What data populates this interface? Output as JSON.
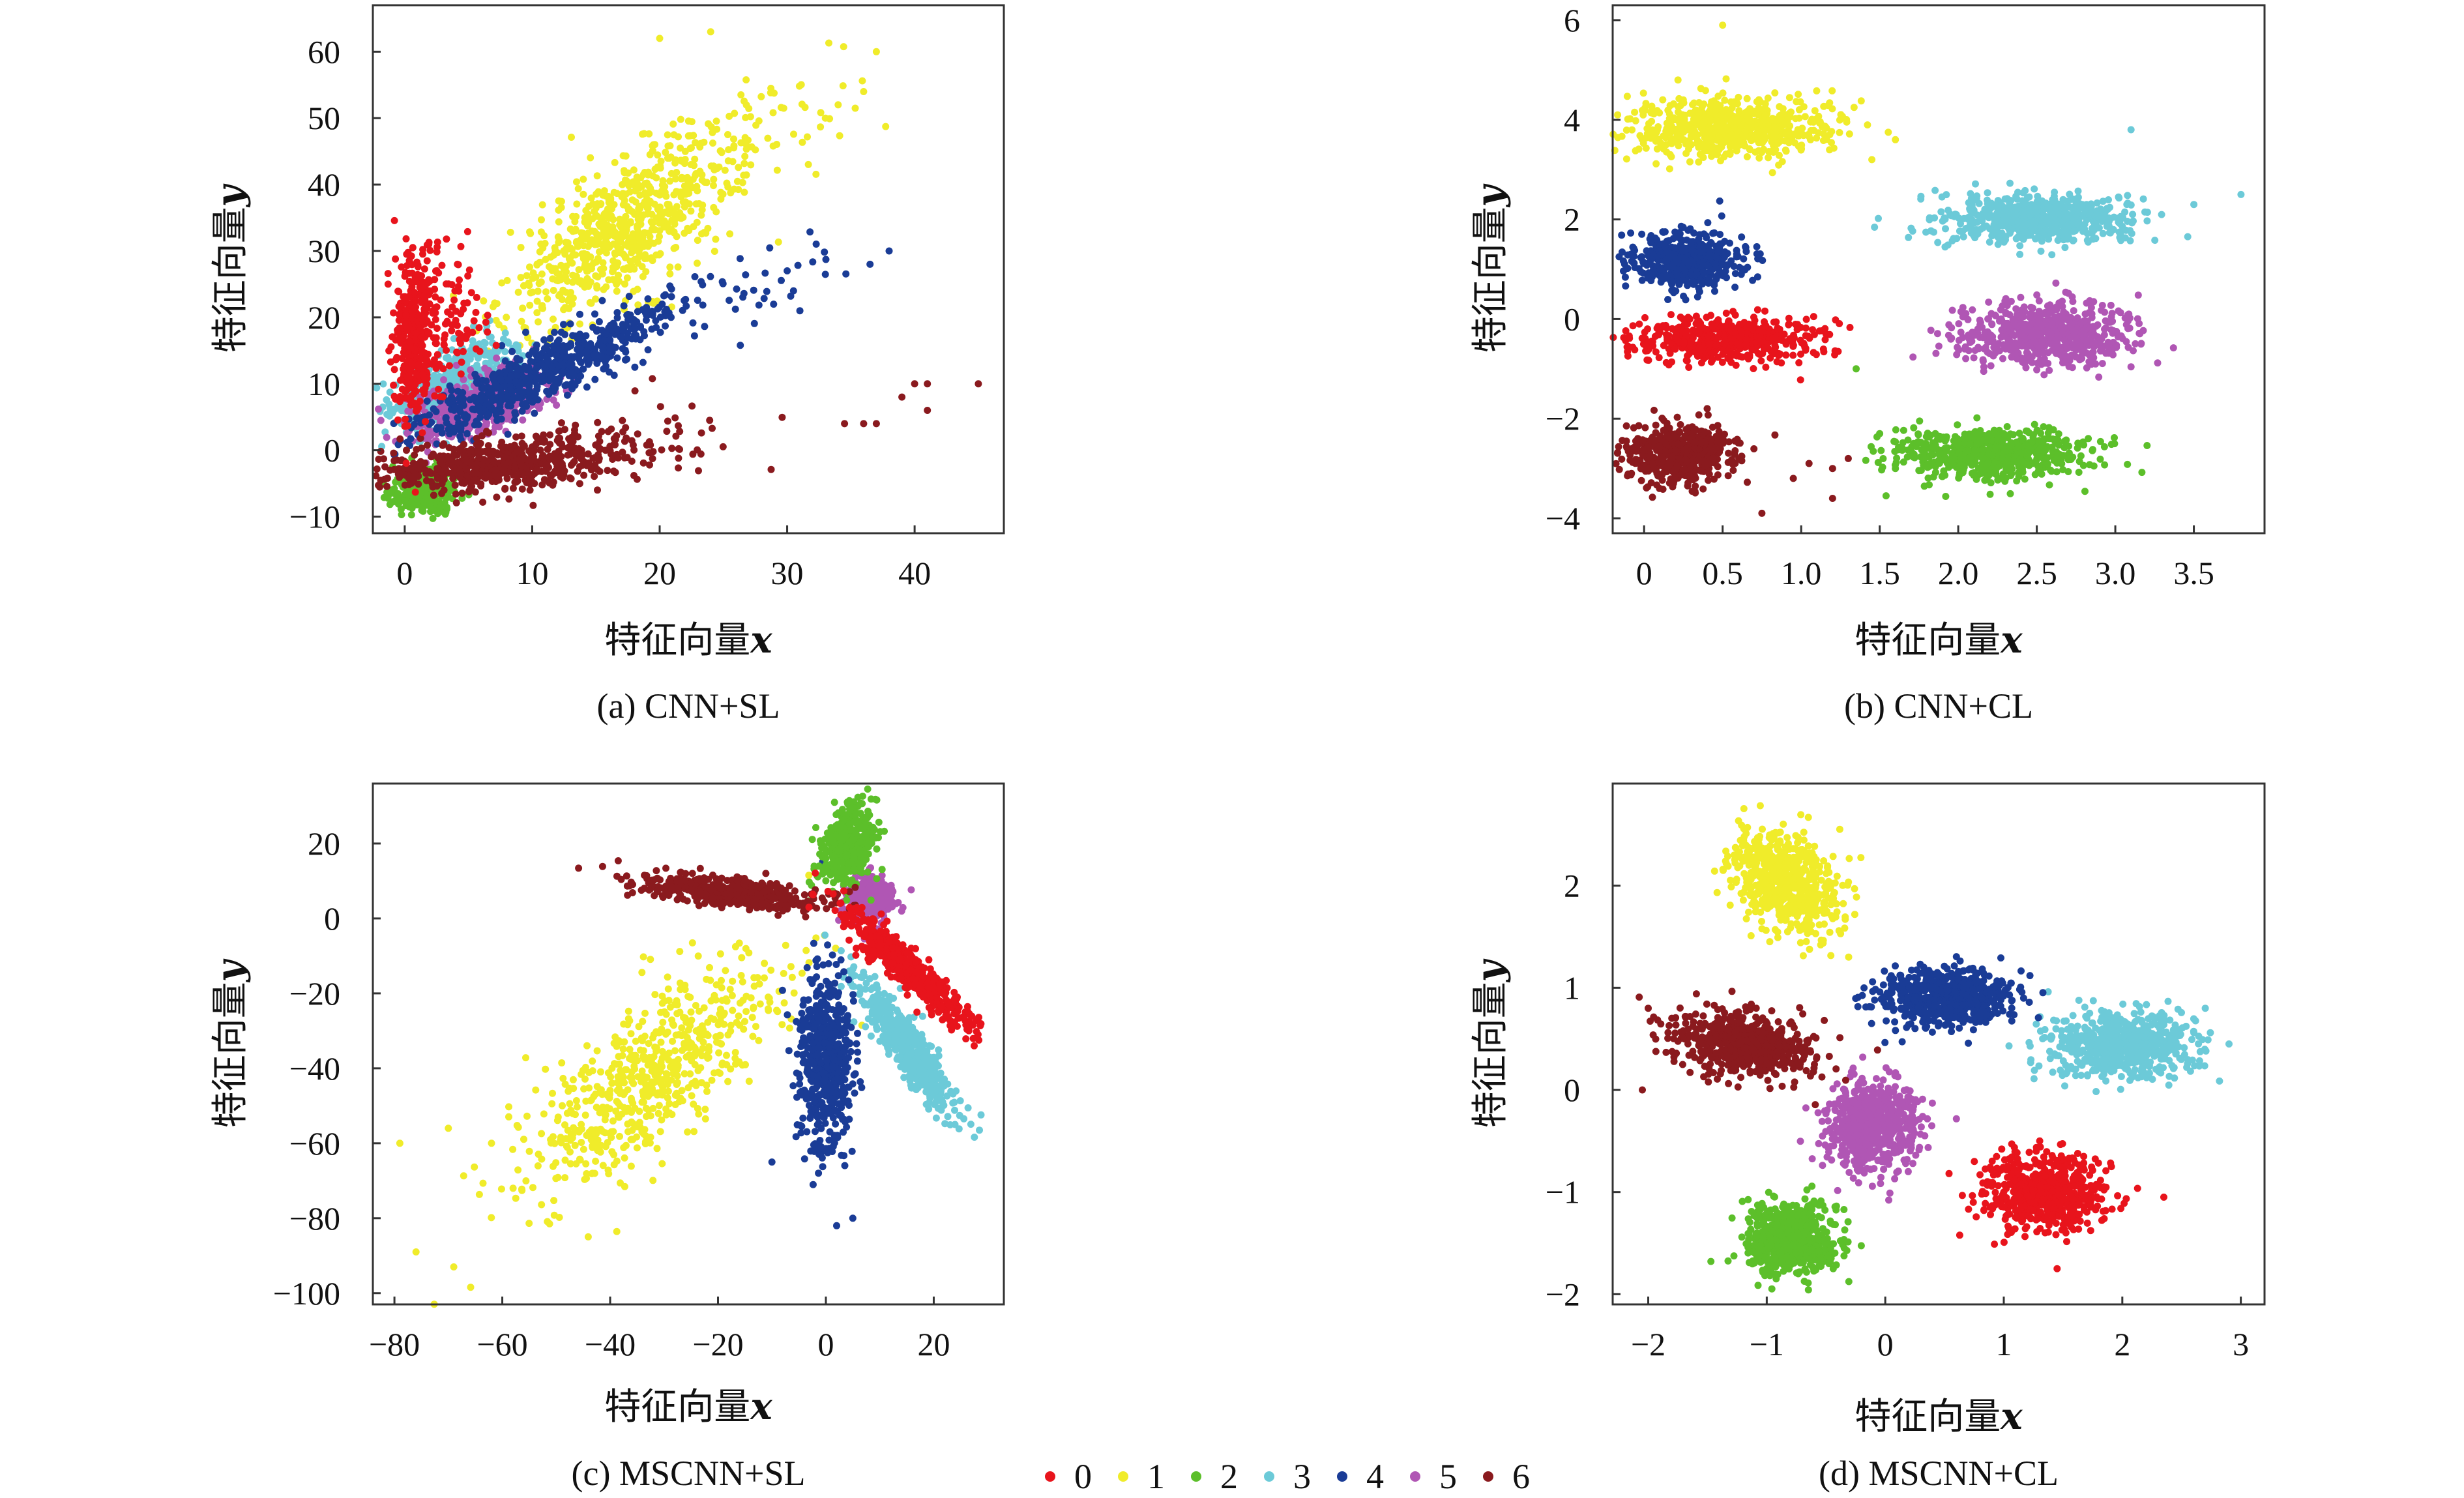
{
  "colors": {
    "class_0": "#e8141c",
    "class_1": "#f0ec2a",
    "class_2": "#5cbf2a",
    "class_3": "#6ccad8",
    "class_4": "#1a3c96",
    "class_5": "#b056b4",
    "class_6": "#8a1a1e"
  },
  "legend": {
    "entries": [
      "0",
      "1",
      "2",
      "3",
      "4",
      "5",
      "6"
    ]
  },
  "chart_data": [
    {
      "type": "scatter",
      "caption": "(a) CNN+SL",
      "xlabel_text": "特征向量",
      "xlabel_var": "x",
      "ylabel_text": "特征向量",
      "ylabel_var": "y",
      "xlim": [
        -2.5,
        47
      ],
      "ylim": [
        -12.5,
        67
      ],
      "xticks": [
        0,
        10,
        20,
        30,
        40
      ],
      "yticks": [
        -10,
        0,
        10,
        20,
        30,
        40,
        50,
        60
      ],
      "grid": false,
      "series": [
        {
          "class": "0",
          "clusters": [
            {
              "cx": 0.8,
              "cy": 17,
              "sx": 0.8,
              "sy": 6,
              "rho": 0,
              "n": 380
            },
            {
              "cx": 4,
              "cy": 20,
              "sx": 1.6,
              "sy": 5,
              "rho": 0,
              "n": 80
            }
          ]
        },
        {
          "class": "1",
          "clusters": [
            {
              "cx": 17,
              "cy": 33,
              "sx": 4.5,
              "sy": 7,
              "rho": 0.7,
              "n": 700
            },
            {
              "cx": 28,
              "cy": 48,
              "sx": 5,
              "sy": 6,
              "rho": 0.5,
              "n": 80
            }
          ]
        },
        {
          "class": "2",
          "clusters": [
            {
              "cx": 1.5,
              "cy": -6,
              "sx": 1.2,
              "sy": 1.8,
              "rho": 0,
              "n": 300
            }
          ]
        },
        {
          "class": "3",
          "clusters": [
            {
              "cx": 4,
              "cy": 10,
              "sx": 2.5,
              "sy": 3.5,
              "rho": 0.6,
              "n": 450
            }
          ]
        },
        {
          "class": "4",
          "clusters": [
            {
              "cx": 11,
              "cy": 12,
              "sx": 5,
              "sy": 5,
              "rho": 0.9,
              "n": 650
            },
            {
              "cx": 28,
              "cy": 24,
              "sx": 3,
              "sy": 4,
              "rho": 0.5,
              "n": 25
            }
          ]
        },
        {
          "class": "5",
          "clusters": [
            {
              "cx": 6,
              "cy": 7,
              "sx": 3,
              "sy": 3,
              "rho": 0.6,
              "n": 450
            }
          ]
        },
        {
          "class": "6",
          "clusters": [
            {
              "cx": 8,
              "cy": -2,
              "sx": 5,
              "sy": 2,
              "rho": 0.3,
              "n": 600
            },
            {
              "cx": 22,
              "cy": 2,
              "sx": 4,
              "sy": 4,
              "rho": 0,
              "n": 25
            }
          ]
        }
      ],
      "outliers": [
        {
          "class": "6",
          "points": [
            [
              34.5,
              4
            ],
            [
              36,
              4
            ],
            [
              37,
              4
            ],
            [
              39,
              8
            ],
            [
              40,
              10
            ],
            [
              41,
              10
            ],
            [
              41,
              6
            ],
            [
              45,
              10
            ]
          ]
        },
        {
          "class": "4",
          "points": [
            [
              36.5,
              28
            ],
            [
              38,
              30
            ],
            [
              30,
              27
            ],
            [
              31,
              21
            ],
            [
              30.5,
              24
            ]
          ]
        },
        {
          "class": "1",
          "points": [
            [
              37,
              60
            ],
            [
              36,
              54
            ],
            [
              34,
              52
            ],
            [
              33,
              50
            ],
            [
              20,
              62
            ],
            [
              24,
              63
            ]
          ]
        }
      ]
    },
    {
      "type": "scatter",
      "caption": "(b) CNN+CL",
      "xlabel_text": "特征向量",
      "xlabel_var": "x",
      "ylabel_text": "特征向量",
      "ylabel_var": "y",
      "xlim": [
        -0.2,
        3.95
      ],
      "ylim": [
        -4.3,
        6.3
      ],
      "xticks": [
        0,
        0.5,
        1.0,
        1.5,
        2.0,
        2.5,
        3.0,
        3.5
      ],
      "xtick_labels": [
        "0",
        "0.5",
        "1.0",
        "1.5",
        "2.0",
        "2.5",
        "3.0",
        "3.5"
      ],
      "yticks": [
        -4,
        -2,
        0,
        2,
        4,
        6
      ],
      "grid": false,
      "series": [
        {
          "class": "0",
          "clusters": [
            {
              "cx": 0.5,
              "cy": -0.4,
              "sx": 0.3,
              "sy": 0.22,
              "rho": 0,
              "n": 550
            }
          ]
        },
        {
          "class": "1",
          "clusters": [
            {
              "cx": 0.55,
              "cy": 3.85,
              "sx": 0.32,
              "sy": 0.3,
              "rho": 0,
              "n": 650
            }
          ]
        },
        {
          "class": "2",
          "clusters": [
            {
              "cx": 2.2,
              "cy": -2.7,
              "sx": 0.3,
              "sy": 0.25,
              "rho": 0,
              "n": 650
            }
          ]
        },
        {
          "class": "3",
          "clusters": [
            {
              "cx": 2.5,
              "cy": 2.0,
              "sx": 0.3,
              "sy": 0.25,
              "rho": 0,
              "n": 600
            }
          ]
        },
        {
          "class": "4",
          "clusters": [
            {
              "cx": 0.25,
              "cy": 1.2,
              "sx": 0.18,
              "sy": 0.28,
              "rho": 0,
              "n": 450
            }
          ]
        },
        {
          "class": "5",
          "clusters": [
            {
              "cx": 2.55,
              "cy": -0.3,
              "sx": 0.28,
              "sy": 0.3,
              "rho": 0,
              "n": 600
            }
          ]
        },
        {
          "class": "6",
          "clusters": [
            {
              "cx": 0.2,
              "cy": -2.7,
              "sx": 0.18,
              "sy": 0.32,
              "rho": 0,
              "n": 450
            }
          ]
        }
      ],
      "outliers": [
        {
          "class": "3",
          "points": [
            [
              3.8,
              2.5
            ],
            [
              3.1,
              3.8
            ],
            [
              3.5,
              2.3
            ]
          ]
        },
        {
          "class": "6",
          "points": [
            [
              1.2,
              -3.0
            ],
            [
              1.05,
              -2.9
            ],
            [
              0.95,
              -3.2
            ],
            [
              0.75,
              -3.9
            ],
            [
              1.3,
              -2.8
            ],
            [
              1.2,
              -3.6
            ]
          ]
        },
        {
          "class": "1",
          "points": [
            [
              1.6,
              3.6
            ],
            [
              1.45,
              3.2
            ],
            [
              0.5,
              5.9
            ]
          ]
        },
        {
          "class": "2",
          "points": [
            [
              1.5,
              -2.3
            ],
            [
              1.35,
              -1.0
            ],
            [
              1.6,
              -3.0
            ]
          ]
        }
      ]
    },
    {
      "type": "scatter",
      "caption": "(c) MSCNN+SL",
      "xlabel_text": "特征向量",
      "xlabel_var": "x",
      "ylabel_text": "特征向量",
      "ylabel_var": "y",
      "xlim": [
        -84,
        33
      ],
      "ylim": [
        -103,
        36
      ],
      "xticks": [
        -80,
        -60,
        -40,
        -20,
        0,
        20
      ],
      "yticks": [
        -100,
        -80,
        -60,
        -40,
        -20,
        0,
        20
      ],
      "grid": false,
      "series": [
        {
          "class": "0",
          "clusters": [
            {
              "cx": 15,
              "cy": -13,
              "sx": 6,
              "sy": 8,
              "rho": -0.93,
              "n": 500
            }
          ]
        },
        {
          "class": "1",
          "clusters": [
            {
              "cx": -32,
              "cy": -42,
              "sx": 12,
              "sy": 16,
              "rho": 0.75,
              "n": 650
            }
          ]
        },
        {
          "class": "2",
          "clusters": [
            {
              "cx": 4,
              "cy": 20,
              "sx": 2.5,
              "sy": 5,
              "rho": 0.3,
              "n": 450
            }
          ]
        },
        {
          "class": "3",
          "clusters": [
            {
              "cx": 15,
              "cy": -34,
              "sx": 4.5,
              "sy": 9,
              "rho": -0.9,
              "n": 550
            }
          ]
        },
        {
          "class": "4",
          "clusters": [
            {
              "cx": 0,
              "cy": -38,
              "sx": 2.5,
              "sy": 12,
              "rho": 0,
              "n": 550
            }
          ]
        },
        {
          "class": "5",
          "clusters": [
            {
              "cx": 8,
              "cy": 5,
              "sx": 2.2,
              "sy": 2.8,
              "rho": 0,
              "n": 350
            }
          ]
        },
        {
          "class": "6",
          "clusters": [
            {
              "cx": -18,
              "cy": 7,
              "sx": 9,
              "sy": 2.6,
              "rho": -0.6,
              "n": 450
            }
          ]
        }
      ],
      "outliers": [
        {
          "class": "1",
          "points": [
            [
              -79,
              -60
            ],
            [
              -76,
              -89
            ],
            [
              -69,
              -93
            ],
            [
              -70,
              -56
            ],
            [
              -62,
              -60
            ],
            [
              -58,
              -72
            ]
          ]
        },
        {
          "class": "4",
          "points": [
            [
              2,
              -82
            ],
            [
              5,
              -80
            ],
            [
              -10,
              -65
            ]
          ]
        }
      ]
    },
    {
      "type": "scatter",
      "caption": "(d) MSCNN+CL",
      "xlabel_text": "特征向量",
      "xlabel_var": "x",
      "ylabel_text": "特征向量",
      "ylabel_var": "y",
      "xlim": [
        -2.3,
        3.2
      ],
      "ylim": [
        -2.1,
        3.0
      ],
      "xticks": [
        -2,
        -1,
        0,
        1,
        2,
        3
      ],
      "yticks": [
        -2,
        -1,
        0,
        1,
        2
      ],
      "grid": false,
      "series": [
        {
          "class": "0",
          "clusters": [
            {
              "cx": 1.35,
              "cy": -1.0,
              "sx": 0.25,
              "sy": 0.18,
              "rho": 0,
              "n": 600
            }
          ]
        },
        {
          "class": "1",
          "clusters": [
            {
              "cx": -0.85,
              "cy": 2.05,
              "sx": 0.22,
              "sy": 0.25,
              "rho": -0.3,
              "n": 650
            }
          ]
        },
        {
          "class": "2",
          "clusters": [
            {
              "cx": -0.8,
              "cy": -1.45,
              "sx": 0.2,
              "sy": 0.18,
              "rho": 0,
              "n": 600
            }
          ]
        },
        {
          "class": "3",
          "clusters": [
            {
              "cx": 2.0,
              "cy": 0.45,
              "sx": 0.3,
              "sy": 0.17,
              "rho": 0,
              "n": 600
            }
          ]
        },
        {
          "class": "4",
          "clusters": [
            {
              "cx": 0.5,
              "cy": 0.9,
              "sx": 0.28,
              "sy": 0.14,
              "rho": 0,
              "n": 600
            }
          ]
        },
        {
          "class": "5",
          "clusters": [
            {
              "cx": -0.1,
              "cy": -0.35,
              "sx": 0.2,
              "sy": 0.22,
              "rho": 0,
              "n": 600
            }
          ]
        },
        {
          "class": "6",
          "clusters": [
            {
              "cx": -1.2,
              "cy": 0.45,
              "sx": 0.3,
              "sy": 0.16,
              "rho": -0.3,
              "n": 600
            }
          ]
        }
      ],
      "outliers": [
        {
          "class": "6",
          "points": [
            [
              -2.05,
              0.0
            ],
            [
              -2.0,
              0.8
            ]
          ]
        },
        {
          "class": "3",
          "points": [
            [
              2.9,
              0.45
            ],
            [
              2.7,
              0.8
            ]
          ]
        },
        {
          "class": "0",
          "points": [
            [
              2.35,
              -1.05
            ],
            [
              1.45,
              -1.75
            ]
          ]
        }
      ]
    }
  ]
}
